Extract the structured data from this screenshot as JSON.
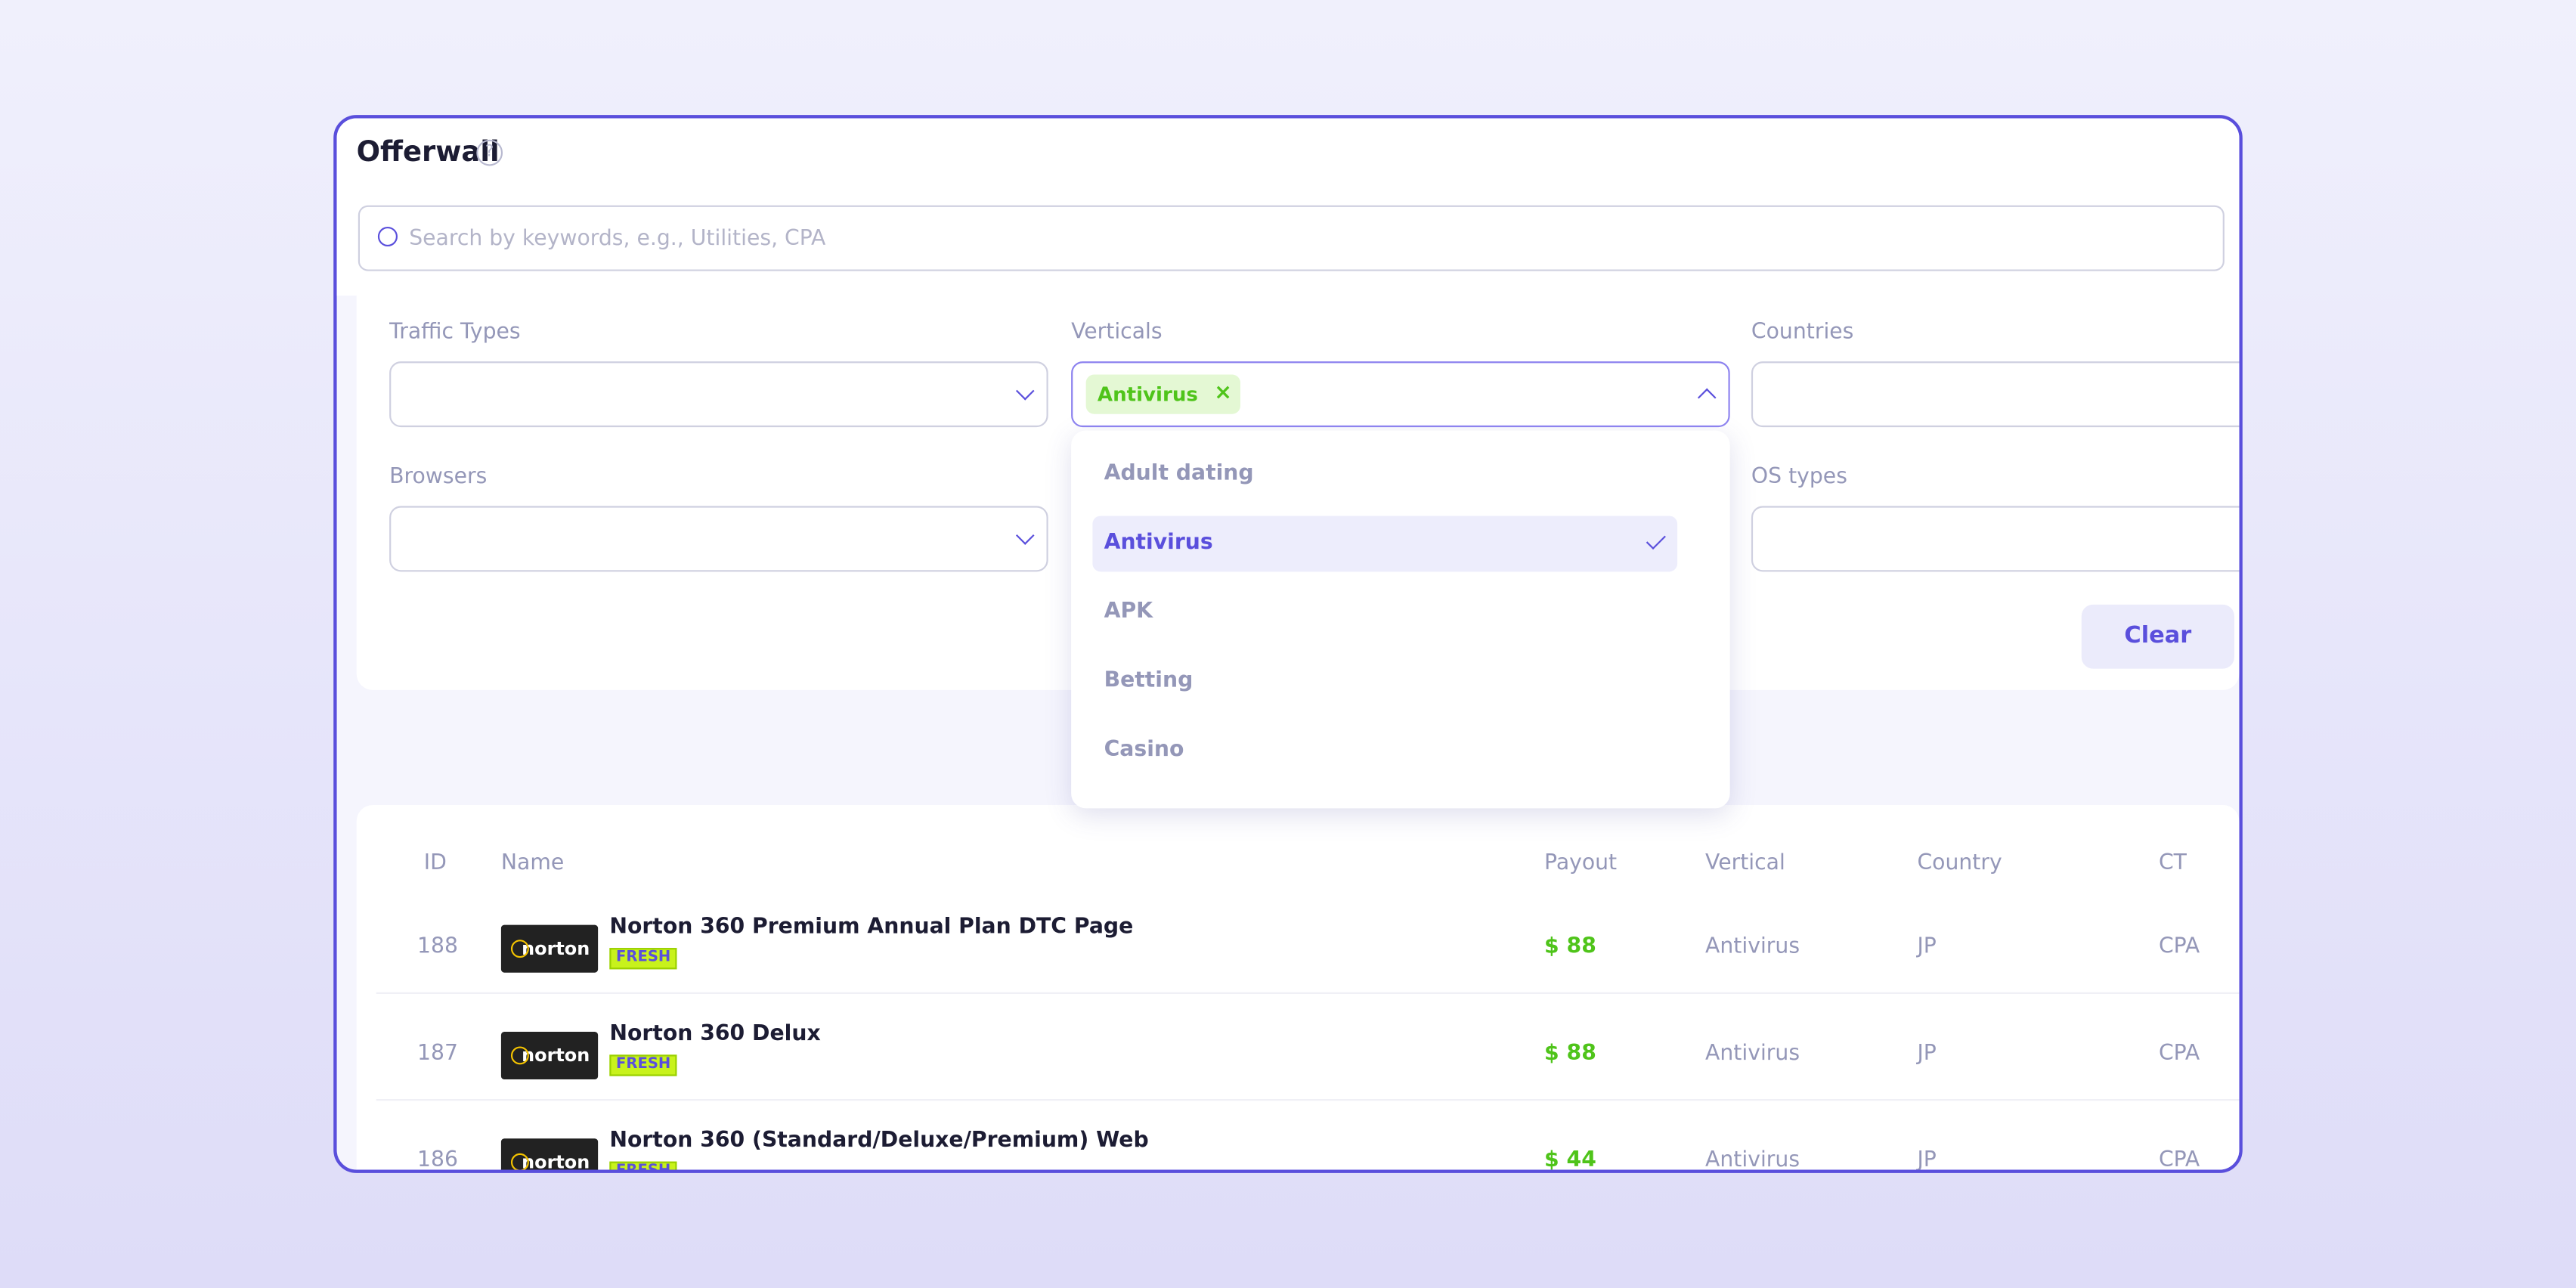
{
  "header": {
    "title": "Offerwall",
    "help": "?"
  },
  "search": {
    "placeholder": "Search by keywords, e.g., Utilities, CPA"
  },
  "filters": {
    "labels": [
      "Traffic Types",
      "Verticals",
      "Countries",
      "Browsers",
      "OS types"
    ],
    "selected_chip": "Antivirus",
    "clear": "Clear"
  },
  "dropdown": {
    "options": [
      "Adult dating",
      "Antivirus",
      "APK",
      "Betting",
      "Casino"
    ],
    "selected": 1
  },
  "table": {
    "columns": [
      "ID",
      "Name",
      "Payout",
      "Vertical",
      "Country",
      "CT"
    ],
    "rows": [
      {
        "id": "188",
        "logo": "norton",
        "name": "Norton 360 Premium Annual Plan DTC Page",
        "badge": "FRESH",
        "payout": "$ 88",
        "vertical": "Antivirus",
        "country": "JP",
        "ct": "CPA"
      },
      {
        "id": "187",
        "logo": "norton",
        "name": "Norton 360 Delux",
        "badge": "FRESH",
        "payout": "$ 88",
        "vertical": "Antivirus",
        "country": "JP",
        "ct": "CPA"
      },
      {
        "id": "186",
        "logo": "norton",
        "name": "Norton 360 (Standard/Deluxe/Premium) Web",
        "badge": "FRESH",
        "payout": "$ 44",
        "vertical": "Antivirus",
        "country": "JP",
        "ct": "CPA"
      }
    ]
  }
}
